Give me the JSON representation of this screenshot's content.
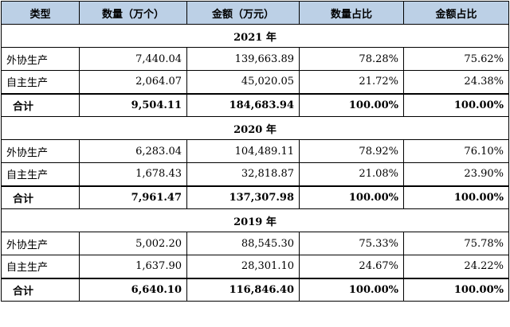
{
  "headers": [
    "类型",
    "数量（万个）",
    "金额（万元）",
    "数量占比",
    "金额占比"
  ],
  "sections": [
    {
      "year": "2021 年",
      "rows": [
        {
          "type": "外协生产",
          "qty": "7,440.04",
          "amount": "139,663.89",
          "qty_pct": "78.28%",
          "amt_pct": "75.62%"
        },
        {
          "type": "自主生产",
          "qty": "2,064.07",
          "amount": "45,020.05",
          "qty_pct": "21.72%",
          "amt_pct": "24.38%"
        }
      ],
      "total": {
        "type": "合计",
        "qty": "9,504.11",
        "amount": "184,683.94",
        "qty_pct": "100.00%",
        "amt_pct": "100.00%"
      }
    },
    {
      "year": "2020 年",
      "rows": [
        {
          "type": "外协生产",
          "qty": "6,283.04",
          "amount": "104,489.11",
          "qty_pct": "78.92%",
          "amt_pct": "76.10%"
        },
        {
          "type": "自主生产",
          "qty": "1,678.43",
          "amount": "32,818.87",
          "qty_pct": "21.08%",
          "amt_pct": "23.90%"
        }
      ],
      "total": {
        "type": "合计",
        "qty": "7,961.47",
        "amount": "137,307.98",
        "qty_pct": "100.00%",
        "amt_pct": "100.00%"
      }
    },
    {
      "year": "2019 年",
      "rows": [
        {
          "type": "外协生产",
          "qty": "5,002.20",
          "amount": "88,545.30",
          "qty_pct": "75.33%",
          "amt_pct": "75.78%"
        },
        {
          "type": "自主生产",
          "qty": "1,637.90",
          "amount": "28,301.10",
          "qty_pct": "24.67%",
          "amt_pct": "24.22%"
        }
      ],
      "total": {
        "type": "合计",
        "qty": "6,640.10",
        "amount": "116,846.40",
        "qty_pct": "100.00%",
        "amt_pct": "100.00%"
      }
    }
  ]
}
